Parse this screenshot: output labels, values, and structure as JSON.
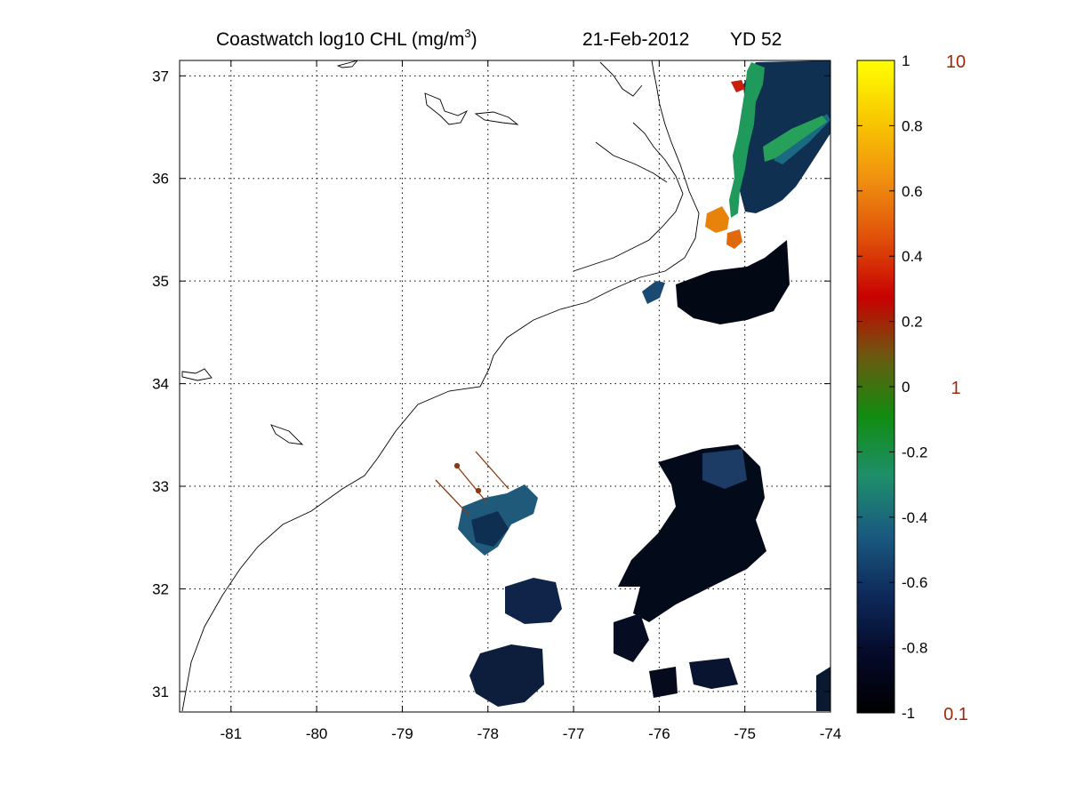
{
  "title": {
    "product": "Coastwatch  log10  CHL (mg/m",
    "superscript": "3",
    "close": ")",
    "date": "21-Feb-2012",
    "yearday": "YD 52"
  },
  "map": {
    "lon_range": [
      -81.6,
      -74.0
    ],
    "lat_range": [
      30.8,
      37.15
    ],
    "lon_ticks": [
      -81,
      -80,
      -79,
      -78,
      -77,
      -76,
      -75,
      -74
    ],
    "lat_ticks": [
      31,
      32,
      33,
      34,
      35,
      36,
      37
    ],
    "lon_tick_labels": [
      "-81",
      "-80",
      "-79",
      "-78",
      "-77",
      "-76",
      "-75",
      "-74"
    ],
    "lat_tick_labels": [
      "31",
      "32",
      "33",
      "34",
      "35",
      "36",
      "37"
    ],
    "grid": "dotted"
  },
  "colorbar": {
    "log_ticks": [
      -1,
      -0.8,
      -0.6,
      -0.4,
      -0.2,
      0,
      0.2,
      0.4,
      0.6,
      0.8,
      1
    ],
    "log_tick_labels": [
      "-1",
      "-0.8",
      "-0.6",
      "-0.4",
      "-0.2",
      "0",
      "0.2",
      "0.4",
      "0.6",
      "0.8",
      "1"
    ],
    "linear_labels": [
      {
        "value": -1,
        "text": "0.1"
      },
      {
        "value": 0,
        "text": "1"
      },
      {
        "value": 1,
        "text": "10"
      }
    ],
    "stops": [
      "#000000",
      "#050a2a",
      "#0e2a5a",
      "#1a5a80",
      "#1e8f6a",
      "#108c10",
      "#6a5a10",
      "#c80000",
      "#e0500a",
      "#f09010",
      "#f8c800",
      "#ffff00"
    ],
    "range": [
      -1,
      1
    ]
  },
  "arrow_color": "#8b3a10"
}
